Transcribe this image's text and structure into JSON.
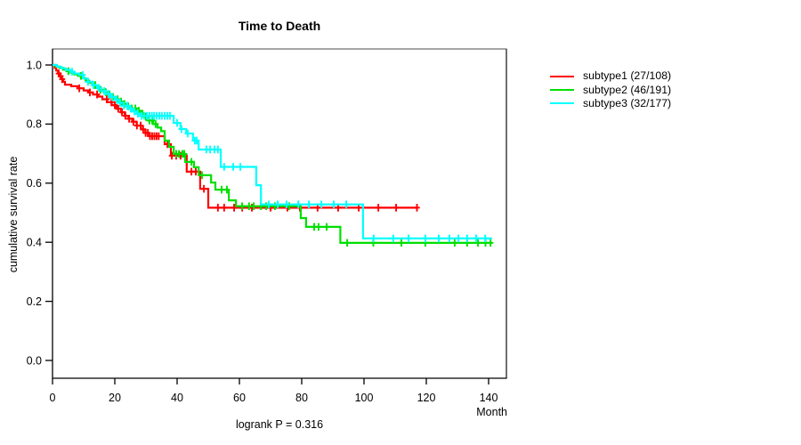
{
  "title": "Time to Death",
  "annotation": "logrank P = 0.316",
  "axes": {
    "x": {
      "label": "Month",
      "ticks": [
        "0",
        "20",
        "40",
        "60",
        "80",
        "100",
        "120",
        "140"
      ],
      "tick_values": [
        0,
        20,
        40,
        60,
        80,
        100,
        120,
        140
      ]
    },
    "y": {
      "label": "cumulative survival rate",
      "ticks": [
        "0.0",
        "0.2",
        "0.4",
        "0.6",
        "0.8",
        "1.0"
      ],
      "tick_values": [
        0,
        0.2,
        0.4,
        0.6,
        0.8,
        1.0
      ]
    }
  },
  "legend": {
    "items": [
      {
        "label": "subtype1 (27/108)",
        "color": "#ff0000"
      },
      {
        "label": "subtype2 (46/191)",
        "color": "#00df00"
      },
      {
        "label": "subtype3 (32/177)",
        "color": "#00ffff"
      }
    ]
  },
  "colors": {
    "axis_box_top": "#858585",
    "axis_box_right": "#4a4a4a",
    "axis_main": "#000000",
    "background": "#ffffff"
  },
  "chart_data": {
    "type": "line",
    "subtype": "kaplan-meier-step",
    "title": "Time to Death",
    "xlabel": "Month",
    "ylabel": "cumulative survival rate",
    "xlim": [
      0,
      145.7
    ],
    "ylim": [
      0.0,
      1.0
    ],
    "x_ticks": [
      0,
      20,
      40,
      60,
      80,
      100,
      120,
      140
    ],
    "y_ticks": [
      0.0,
      0.2,
      0.4,
      0.6,
      0.8,
      1.0
    ],
    "grid": false,
    "legend_position": "right-outside",
    "annotation": "logrank P = 0.316",
    "series": [
      {
        "name": "subtype1 (27/108)",
        "events": 27,
        "n": 108,
        "color": "#ff0000",
        "end_time": 117.0,
        "steps": [
          [
            0,
            1.0
          ],
          [
            0.7,
            0.99
          ],
          [
            1.2,
            0.981
          ],
          [
            1.8,
            0.971
          ],
          [
            2.3,
            0.962
          ],
          [
            2.9,
            0.952
          ],
          [
            3.4,
            0.943
          ],
          [
            4.0,
            0.933
          ],
          [
            6.0,
            0.928
          ],
          [
            8.0,
            0.921
          ],
          [
            10.0,
            0.914
          ],
          [
            11.5,
            0.907
          ],
          [
            13.0,
            0.9
          ],
          [
            14.5,
            0.893
          ],
          [
            16.0,
            0.884
          ],
          [
            17.5,
            0.874
          ],
          [
            19.0,
            0.864
          ],
          [
            20.5,
            0.852
          ],
          [
            22.0,
            0.84
          ],
          [
            23.2,
            0.828
          ],
          [
            24.4,
            0.818
          ],
          [
            25.6,
            0.808
          ],
          [
            27.0,
            0.795
          ],
          [
            28.4,
            0.782
          ],
          [
            29.8,
            0.77
          ],
          [
            31.2,
            0.759
          ],
          [
            36.0,
            0.732
          ],
          [
            38.0,
            0.693
          ],
          [
            43.1,
            0.639
          ],
          [
            47.4,
            0.581
          ],
          [
            50.0,
            0.517
          ]
        ],
        "censor_times": [
          2.0,
          2.6,
          3.1,
          8.6,
          12.0,
          14.3,
          17.4,
          18.9,
          20.0,
          21.1,
          22.3,
          23.4,
          24.6,
          26.0,
          27.1,
          28.3,
          29.1,
          29.9,
          30.6,
          31.3,
          32.0,
          32.7,
          33.4,
          34.1,
          36.9,
          38.3,
          39.7,
          41.1,
          44.6,
          46.0,
          48.6,
          53.1,
          55.1,
          58.3,
          60.9,
          64.0,
          70.0,
          75.4,
          79.4,
          85.1,
          91.7,
          98.3,
          104.6,
          110.3,
          117.0
        ]
      },
      {
        "name": "subtype2 (46/191)",
        "events": 46,
        "n": 191,
        "color": "#00df00",
        "end_time": 141.1,
        "steps": [
          [
            0,
            1.0
          ],
          [
            1.0,
            0.995
          ],
          [
            2.2,
            0.99
          ],
          [
            3.4,
            0.984
          ],
          [
            4.6,
            0.979
          ],
          [
            5.8,
            0.974
          ],
          [
            7.0,
            0.968
          ],
          [
            8.2,
            0.963
          ],
          [
            9.4,
            0.955
          ],
          [
            10.6,
            0.947
          ],
          [
            11.8,
            0.94
          ],
          [
            13.0,
            0.932
          ],
          [
            14.2,
            0.924
          ],
          [
            15.4,
            0.916
          ],
          [
            16.6,
            0.908
          ],
          [
            17.8,
            0.9
          ],
          [
            19.0,
            0.892
          ],
          [
            20.2,
            0.884
          ],
          [
            21.4,
            0.876
          ],
          [
            22.6,
            0.868
          ],
          [
            24.0,
            0.86
          ],
          [
            25.4,
            0.853
          ],
          [
            26.9,
            0.845
          ],
          [
            28.3,
            0.835
          ],
          [
            29.7,
            0.824
          ],
          [
            31.0,
            0.812
          ],
          [
            32.3,
            0.8
          ],
          [
            33.7,
            0.788
          ],
          [
            34.9,
            0.776
          ],
          [
            36.0,
            0.744
          ],
          [
            37.4,
            0.723
          ],
          [
            38.9,
            0.699
          ],
          [
            42.6,
            0.672
          ],
          [
            45.4,
            0.654
          ],
          [
            46.9,
            0.627
          ],
          [
            50.9,
            0.602
          ],
          [
            52.3,
            0.578
          ],
          [
            56.6,
            0.542
          ],
          [
            58.9,
            0.522
          ],
          [
            79.7,
            0.482
          ],
          [
            81.4,
            0.452
          ],
          [
            92.4,
            0.398
          ]
        ],
        "censor_times": [
          5.1,
          9.1,
          13.7,
          15.4,
          17.1,
          18.3,
          19.4,
          20.9,
          22.0,
          23.1,
          24.3,
          25.4,
          26.6,
          27.7,
          28.9,
          30.0,
          31.1,
          32.0,
          33.1,
          39.7,
          40.6,
          41.7,
          42.3,
          44.6,
          48.0,
          54.3,
          56.0,
          60.9,
          63.1,
          64.6,
          66.9,
          68.6,
          71.4,
          76.0,
          84.0,
          85.4,
          88.0,
          94.6,
          103.0,
          112.0,
          119.7,
          129.1,
          133.1,
          136.6,
          139.0,
          140.6
        ]
      },
      {
        "name": "subtype3 (32/177)",
        "events": 32,
        "n": 177,
        "color": "#00ffff",
        "end_time": 141.1,
        "steps": [
          [
            0,
            1.0
          ],
          [
            1.4,
            0.994
          ],
          [
            2.9,
            0.989
          ],
          [
            4.3,
            0.983
          ],
          [
            5.7,
            0.977
          ],
          [
            7.1,
            0.971
          ],
          [
            8.6,
            0.966
          ],
          [
            10.0,
            0.954
          ],
          [
            11.4,
            0.943
          ],
          [
            12.9,
            0.932
          ],
          [
            14.3,
            0.922
          ],
          [
            15.7,
            0.912
          ],
          [
            17.1,
            0.902
          ],
          [
            18.6,
            0.892
          ],
          [
            20.0,
            0.882
          ],
          [
            21.4,
            0.872
          ],
          [
            22.9,
            0.862
          ],
          [
            24.3,
            0.852
          ],
          [
            25.7,
            0.843
          ],
          [
            27.1,
            0.835
          ],
          [
            28.3,
            0.828
          ],
          [
            38.9,
            0.804
          ],
          [
            41.1,
            0.783
          ],
          [
            42.9,
            0.768
          ],
          [
            45.1,
            0.744
          ],
          [
            46.9,
            0.714
          ],
          [
            54.0,
            0.655
          ],
          [
            65.4,
            0.593
          ],
          [
            66.9,
            0.528
          ],
          [
            99.7,
            0.413
          ]
        ],
        "censor_times": [
          6.3,
          9.7,
          11.4,
          13.1,
          14.9,
          16.6,
          18.0,
          19.1,
          20.6,
          21.7,
          22.9,
          24.0,
          25.1,
          26.3,
          27.4,
          28.6,
          29.4,
          30.3,
          31.1,
          31.9,
          32.6,
          33.4,
          34.3,
          35.1,
          36.0,
          36.9,
          37.7,
          40.0,
          41.4,
          43.4,
          45.7,
          46.3,
          49.4,
          50.6,
          52.0,
          53.1,
          55.1,
          58.0,
          60.3,
          69.4,
          72.3,
          75.1,
          78.9,
          82.3,
          86.3,
          90.3,
          94.3,
          103.1,
          109.4,
          114.3,
          119.7,
          124.0,
          127.4,
          130.3,
          133.1,
          136.0,
          138.9
        ]
      }
    ]
  }
}
